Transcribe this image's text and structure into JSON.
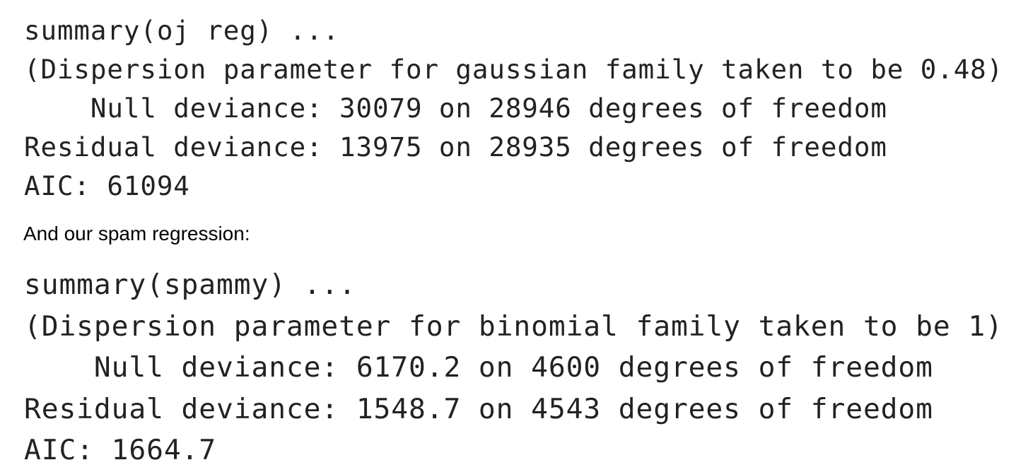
{
  "block1": {
    "lines": [
      "summary(oj reg) ...",
      "(Dispersion parameter for gaussian family taken to be 0.48)",
      "    Null deviance: 30079 on 28946 degrees of freedom",
      "Residual deviance: 13975 on 28935 degrees of freedom",
      "AIC: 61094"
    ]
  },
  "prose": {
    "text": "And our spam regression:"
  },
  "block2": {
    "lines": [
      "summary(spammy) ...",
      "(Dispersion parameter for binomial family taken to be 1)",
      "    Null deviance: 6170.2 on 4600 degrees of freedom",
      "Residual deviance: 1548.7 on 4543 degrees of freedom",
      "AIC: 1664.7"
    ]
  }
}
